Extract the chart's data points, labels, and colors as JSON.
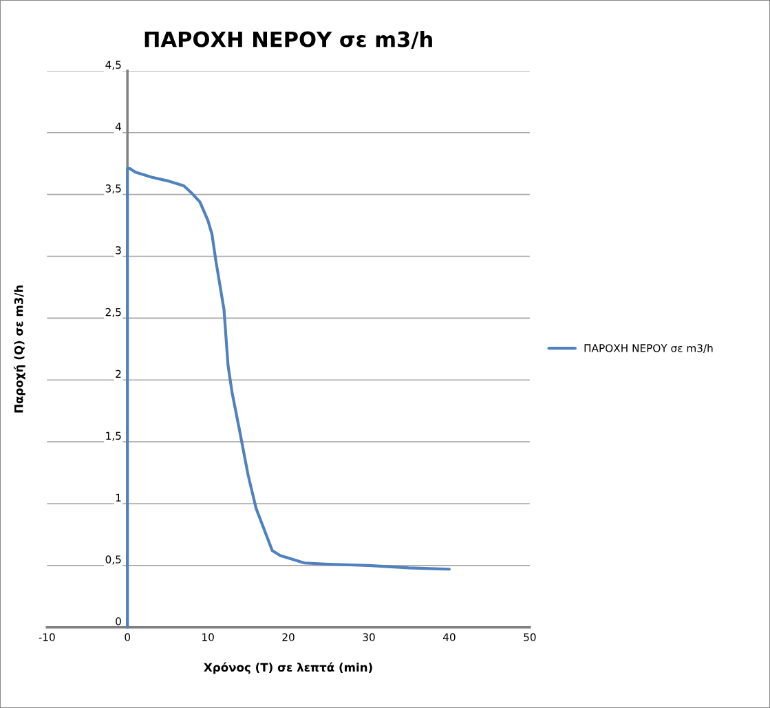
{
  "chart_data": {
    "type": "line",
    "title": "ΠΑΡΟΧΗ ΝΕΡΟΥ σε m3/h",
    "xlabel": "Χρόνος (Τ) σε λεπτά (min)",
    "ylabel": "Παροχή (Q) σε m3/h",
    "series": [
      {
        "name": "ΠΑΡΟΧΗ ΝΕΡΟΥ σε m3/h",
        "color": "#4f81bd",
        "x": [
          0,
          0,
          0.3,
          1,
          3,
          5,
          7,
          8,
          9,
          10,
          10.5,
          11,
          12,
          12.5,
          13,
          14,
          15,
          16,
          17,
          18,
          19,
          20,
          22,
          25,
          30,
          35,
          40
        ],
        "values": [
          0,
          3.71,
          3.71,
          3.68,
          3.64,
          3.61,
          3.57,
          3.51,
          3.44,
          3.29,
          3.18,
          2.96,
          2.57,
          2.12,
          1.9,
          1.57,
          1.23,
          0.96,
          0.79,
          0.62,
          0.58,
          0.56,
          0.52,
          0.51,
          0.5,
          0.48,
          0.47
        ]
      }
    ],
    "xlim": [
      -10,
      50
    ],
    "xticks": [
      -10,
      0,
      10,
      20,
      30,
      40,
      50
    ],
    "ylim": [
      0,
      4.5
    ],
    "yticks": [
      0,
      {
        "value": 0.5,
        "label": "0,5"
      },
      1,
      {
        "value": 1.5,
        "label": "1,5"
      },
      2,
      {
        "value": 2.5,
        "label": "2,5"
      },
      3,
      {
        "value": 3.5,
        "label": "3,5"
      },
      4,
      {
        "value": 4.5,
        "label": "4,5"
      }
    ],
    "grid": "y",
    "legend": "right",
    "marker": "none",
    "line_style": "solid"
  }
}
